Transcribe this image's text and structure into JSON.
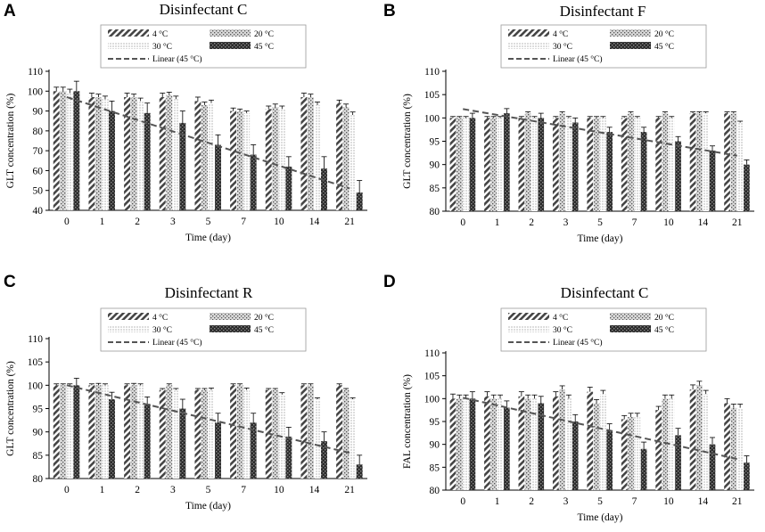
{
  "chart_data": [
    {
      "type": "bar",
      "panel": "A",
      "title": "Disinfectant C",
      "xlabel": "Time (day)",
      "ylabel": "GLT concentration (%)",
      "ylim": [
        40,
        110
      ],
      "yticks": [
        40,
        50,
        60,
        70,
        80,
        90,
        100,
        110
      ],
      "categories": [
        "0",
        "1",
        "2",
        "3",
        "5",
        "7",
        "10",
        "14",
        "21"
      ],
      "series": [
        {
          "name": "4 °C",
          "pattern": "diag",
          "values": [
            100,
            97,
            97,
            97,
            95,
            90,
            91,
            97,
            94
          ],
          "errors": [
            2,
            2,
            2,
            2,
            2,
            1.5,
            1.5,
            2,
            1.5
          ]
        },
        {
          "name": "20 °C",
          "pattern": "cross",
          "values": [
            100,
            97,
            97,
            98,
            93,
            90,
            92,
            97,
            92
          ],
          "errors": [
            2,
            1.5,
            1.5,
            1.5,
            1.5,
            1,
            1.5,
            1.5,
            1.5
          ]
        },
        {
          "name": "30 °C",
          "pattern": "dots",
          "values": [
            99,
            96,
            95,
            96,
            94,
            89,
            91,
            93,
            88
          ],
          "errors": [
            2,
            1.5,
            1.5,
            1.5,
            1.5,
            1,
            1.5,
            1.5,
            1.5
          ]
        },
        {
          "name": "45 °C",
          "pattern": "dark",
          "values": [
            100,
            90,
            89,
            84,
            73,
            68,
            62,
            61,
            49
          ],
          "errors": [
            5,
            5,
            5,
            6,
            5,
            5,
            5,
            6,
            6
          ]
        }
      ],
      "trend": {
        "name": "Linear (45 °C)",
        "start": 97,
        "end": 51
      }
    },
    {
      "type": "bar",
      "panel": "B",
      "title": "Disinfectant F",
      "xlabel": "Time (day)",
      "ylabel": "GLT concentration (%)",
      "ylim": [
        80,
        110
      ],
      "yticks": [
        80,
        85,
        90,
        95,
        100,
        105,
        110
      ],
      "categories": [
        "0",
        "1",
        "2",
        "3",
        "5",
        "7",
        "10",
        "14",
        "21"
      ],
      "series": [
        {
          "name": "4 °C",
          "pattern": "diag",
          "values": [
            100,
            100,
            100,
            100,
            100,
            100,
            100,
            101,
            101
          ],
          "errors": [
            0.3,
            0.3,
            0.3,
            0.3,
            0.3,
            0.3,
            0.3,
            0.3,
            0.3
          ]
        },
        {
          "name": "20 °C",
          "pattern": "cross",
          "values": [
            100,
            100,
            101,
            101,
            100,
            101,
            101,
            101,
            101
          ],
          "errors": [
            0.3,
            0.3,
            0.3,
            0.3,
            0.3,
            0.3,
            0.3,
            0.3,
            0.3
          ]
        },
        {
          "name": "30 °C",
          "pattern": "dots",
          "values": [
            100,
            100,
            100,
            100,
            100,
            100,
            100,
            101,
            99
          ],
          "errors": [
            0.3,
            0.3,
            0.3,
            0.3,
            0.3,
            0.3,
            0.3,
            0.3,
            0.3
          ]
        },
        {
          "name": "45 °C",
          "pattern": "dark",
          "values": [
            100,
            101,
            100,
            99,
            97,
            97,
            95,
            93,
            90
          ],
          "errors": [
            1,
            1,
            1,
            1,
            1,
            1,
            1,
            1,
            1
          ]
        }
      ],
      "trend": {
        "name": "Linear (45 °C)",
        "start": 101.9,
        "end": 91.9
      }
    },
    {
      "type": "bar",
      "panel": "C",
      "title": "Disinfectant R",
      "xlabel": "Time (day)",
      "ylabel": "GLT concentration (%)",
      "ylim": [
        80,
        110
      ],
      "yticks": [
        80,
        85,
        90,
        95,
        100,
        105,
        110
      ],
      "categories": [
        "0",
        "1",
        "2",
        "3",
        "5",
        "7",
        "10",
        "14",
        "21"
      ],
      "series": [
        {
          "name": "4 °C",
          "pattern": "diag",
          "values": [
            100,
            100,
            100,
            99,
            99,
            100,
            99,
            100,
            100
          ],
          "errors": [
            0.3,
            0.3,
            0.3,
            0.3,
            0.3,
            0.3,
            0.3,
            0.3,
            0.3
          ]
        },
        {
          "name": "20 °C",
          "pattern": "cross",
          "values": [
            100,
            100,
            100,
            100,
            99,
            100,
            99,
            100,
            99
          ],
          "errors": [
            0.3,
            0.4,
            0.4,
            0.3,
            0.3,
            0.3,
            0.3,
            0.3,
            0.3
          ]
        },
        {
          "name": "30 °C",
          "pattern": "dots",
          "values": [
            100,
            100,
            100,
            99,
            99,
            99,
            98,
            97,
            97
          ],
          "errors": [
            0.3,
            0.3,
            0.3,
            0.3,
            0.4,
            0.4,
            0.4,
            0.3,
            0.3
          ]
        },
        {
          "name": "45 °C",
          "pattern": "dark",
          "values": [
            100,
            97,
            96,
            95,
            92,
            92,
            89,
            88,
            83
          ],
          "errors": [
            1.5,
            1.5,
            1.5,
            2,
            2,
            2,
            2,
            2,
            2
          ]
        }
      ],
      "trend": {
        "name": "Linear (45 °C)",
        "start": 100,
        "end": 85.5
      }
    },
    {
      "type": "bar",
      "panel": "D",
      "title": "Disinfectant C",
      "xlabel": "Time (day)",
      "ylabel": "FAL concentration (%)",
      "ylim": [
        80,
        110
      ],
      "yticks": [
        80,
        85,
        90,
        95,
        100,
        105,
        110
      ],
      "categories": [
        "0",
        "1",
        "2",
        "3",
        "5",
        "7",
        "10",
        "14",
        "21"
      ],
      "series": [
        {
          "name": "4 °C",
          "pattern": "diag",
          "values": [
            100,
            100.5,
            100.5,
            100.5,
            101.5,
            95.5,
            97.5,
            102,
            99
          ],
          "errors": [
            1,
            1,
            1,
            1,
            1,
            0.8,
            0.8,
            1,
            1
          ]
        },
        {
          "name": "20 °C",
          "pattern": "cross",
          "values": [
            100,
            100,
            100,
            102,
            99,
            96,
            100,
            103,
            98
          ],
          "errors": [
            0.8,
            0.8,
            0.8,
            0.8,
            0.8,
            0.8,
            0.8,
            0.8,
            0.8
          ]
        },
        {
          "name": "30 °C",
          "pattern": "dots",
          "values": [
            100,
            100,
            100,
            100,
            101,
            96,
            100,
            101,
            98
          ],
          "errors": [
            0.8,
            0.8,
            0.8,
            0.8,
            0.8,
            0.8,
            0.8,
            0.8,
            0.8
          ]
        },
        {
          "name": "45 °C",
          "pattern": "dark",
          "values": [
            100,
            98,
            99,
            95,
            93,
            89,
            92,
            90,
            86
          ],
          "errors": [
            1.5,
            1.5,
            1.5,
            1.5,
            1.5,
            1.5,
            1.5,
            1.5,
            1.5
          ]
        }
      ],
      "trend": {
        "name": "Linear (45 °C)",
        "start": 100.2,
        "end": 86.8
      }
    }
  ]
}
